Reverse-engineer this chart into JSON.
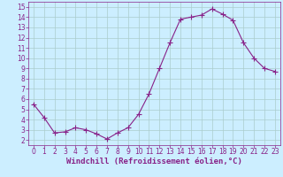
{
  "x": [
    0,
    1,
    2,
    3,
    4,
    5,
    6,
    7,
    8,
    9,
    10,
    11,
    12,
    13,
    14,
    15,
    16,
    17,
    18,
    19,
    20,
    21,
    22,
    23
  ],
  "y": [
    5.5,
    4.2,
    2.7,
    2.8,
    3.2,
    3.0,
    2.6,
    2.1,
    2.7,
    3.2,
    4.5,
    6.5,
    9.0,
    11.5,
    13.8,
    14.0,
    14.2,
    14.8,
    14.3,
    13.7,
    11.5,
    10.0,
    9.0,
    8.7
  ],
  "line_color": "#882288",
  "marker": "+",
  "marker_size": 4,
  "bg_color": "#cceeff",
  "grid_color": "#aacccc",
  "xlabel": "Windchill (Refroidissement éolien,°C)",
  "xlim": [
    -0.5,
    23.5
  ],
  "ylim": [
    1.5,
    15.5
  ],
  "yticks": [
    2,
    3,
    4,
    5,
    6,
    7,
    8,
    9,
    10,
    11,
    12,
    13,
    14,
    15
  ],
  "xticks": [
    0,
    1,
    2,
    3,
    4,
    5,
    6,
    7,
    8,
    9,
    10,
    11,
    12,
    13,
    14,
    15,
    16,
    17,
    18,
    19,
    20,
    21,
    22,
    23
  ],
  "tick_color": "#882288",
  "label_color": "#882288",
  "label_fontsize": 6.5,
  "tick_fontsize": 5.5
}
